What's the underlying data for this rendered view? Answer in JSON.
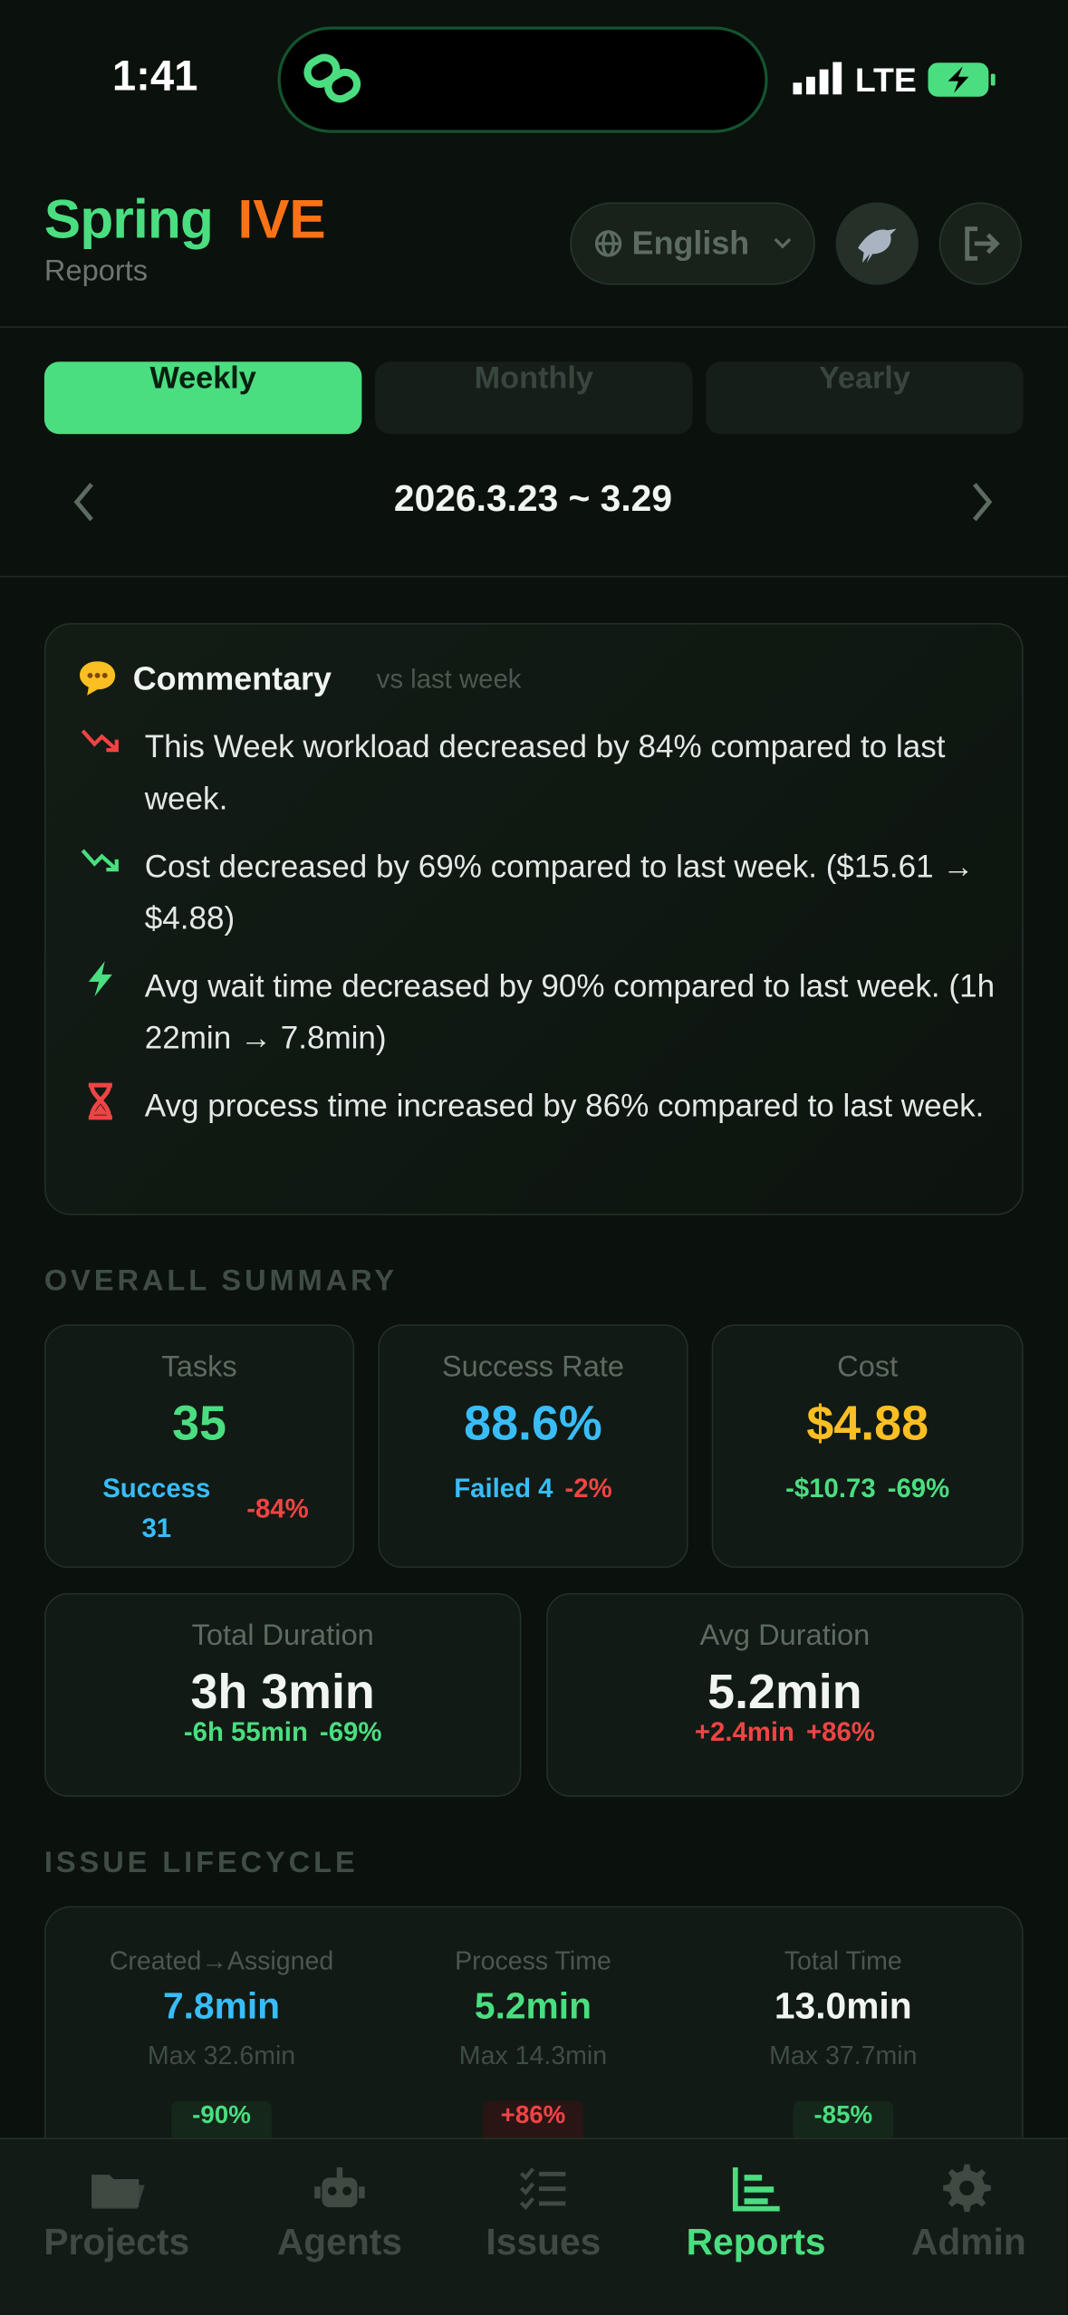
{
  "status_bar": {
    "time": "1:41",
    "network": "LTE"
  },
  "header": {
    "brand_first": "Spring",
    "brand_second": "IVE",
    "subtitle": "Reports",
    "language": "English"
  },
  "period_tabs": [
    {
      "label": "Weekly",
      "active": true
    },
    {
      "label": "Monthly",
      "active": false
    },
    {
      "label": "Yearly",
      "active": false
    }
  ],
  "date_range": "2026.3.23 ~ 3.29",
  "commentary": {
    "title": "Commentary",
    "comparison": "vs last week",
    "items": [
      "This Week workload decreased by 84% compared to last week.",
      "Cost decreased by 69% compared to last week. ($15.61 → $4.88)",
      "Avg wait time decreased by 90% compared to last week. (1h 22min → 7.8min)",
      "Avg process time increased by 86% compared to last week."
    ]
  },
  "overall_summary": {
    "heading": "OVERALL SUMMARY",
    "cards": [
      {
        "label": "Tasks",
        "value": "35",
        "value_color": "#4ade80",
        "details": [
          {
            "text": "Success 31",
            "color": "#38bdf8"
          },
          {
            "text": "-84%",
            "color": "#ef4444"
          }
        ]
      },
      {
        "label": "Success Rate",
        "value": "88.6%",
        "value_color": "#38bdf8",
        "details": [
          {
            "text": "Failed 4",
            "color": "#38bdf8"
          },
          {
            "text": "-2%",
            "color": "#ef4444"
          }
        ]
      },
      {
        "label": "Cost",
        "value": "$4.88",
        "value_color": "#fbbf24",
        "details": [
          {
            "text": "-$10.73",
            "color": "#4ade80"
          },
          {
            "text": "-69%",
            "color": "#4ade80"
          }
        ]
      },
      {
        "label": "Total Duration",
        "value": "3h 3min",
        "value_color": "#f1f5f2",
        "details": [
          {
            "text": "-6h 55min",
            "color": "#4ade80"
          },
          {
            "text": "-69%",
            "color": "#4ade80"
          }
        ]
      },
      {
        "label": "Avg Duration",
        "value": "5.2min",
        "value_color": "#f1f5f2",
        "details": [
          {
            "text": "+2.4min",
            "color": "#ef4444"
          },
          {
            "text": "+86%",
            "color": "#ef4444"
          }
        ]
      }
    ]
  },
  "issue_lifecycle": {
    "heading": "ISSUE LIFECYCLE",
    "columns": [
      {
        "label": "Created→Assigned",
        "value": "7.8min",
        "value_color": "#38bdf8",
        "max": "Max 32.6min",
        "change": "-90%",
        "change_color": "#4ade80"
      },
      {
        "label": "Process Time",
        "value": "5.2min",
        "value_color": "#4ade80",
        "max": "Max 14.3min",
        "change": "+86%",
        "change_color": "#ef4444"
      },
      {
        "label": "Total Time",
        "value": "13.0min",
        "value_color": "#f1f5f2",
        "max": "Max 37.7min",
        "change": "-85%",
        "change_color": "#4ade80"
      }
    ]
  },
  "nav": [
    {
      "label": "Projects",
      "active": false
    },
    {
      "label": "Agents",
      "active": false
    },
    {
      "label": "Issues",
      "active": false
    },
    {
      "label": "Reports",
      "active": true
    },
    {
      "label": "Admin",
      "active": false
    }
  ]
}
